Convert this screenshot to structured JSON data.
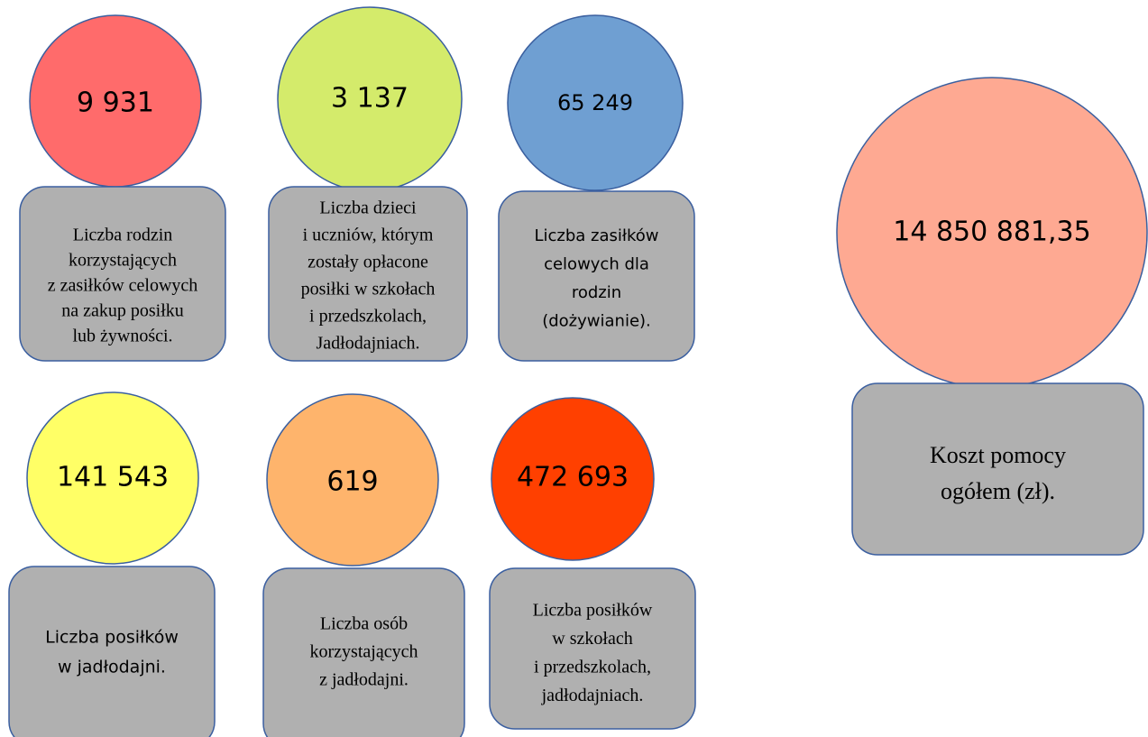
{
  "items": [
    {
      "value": "9 931",
      "label": [
        "Liczba rodzin",
        "korzystających",
        "z zasiłków celowych",
        "na zakup posiłku",
        "lub żywności."
      ]
    },
    {
      "value": "3 137",
      "label": [
        "Liczba dzieci",
        "i uczniów, którym",
        "zostały opłacone",
        "posiłki w szkołach",
        "i przedszkolach,",
        "Jadłodajniach."
      ]
    },
    {
      "value": "65 249",
      "label": [
        "Liczba zasiłków",
        "celowych dla",
        "rodzin",
        "(dożywianie)."
      ]
    },
    {
      "value": "14 850 881,35",
      "label": [
        "Koszt pomocy",
        "ogółem (zł)."
      ]
    },
    {
      "value": "141 543",
      "label": [
        "Liczba posiłków",
        "w jadłodajni."
      ]
    },
    {
      "value": "619",
      "label": [
        "Liczba osób",
        "korzystających",
        "z jadłodajni."
      ]
    },
    {
      "value": "472 693",
      "label": [
        "Liczba posiłków",
        "w szkołach",
        "i przedszkolach,",
        "jadłodajniach."
      ]
    }
  ]
}
